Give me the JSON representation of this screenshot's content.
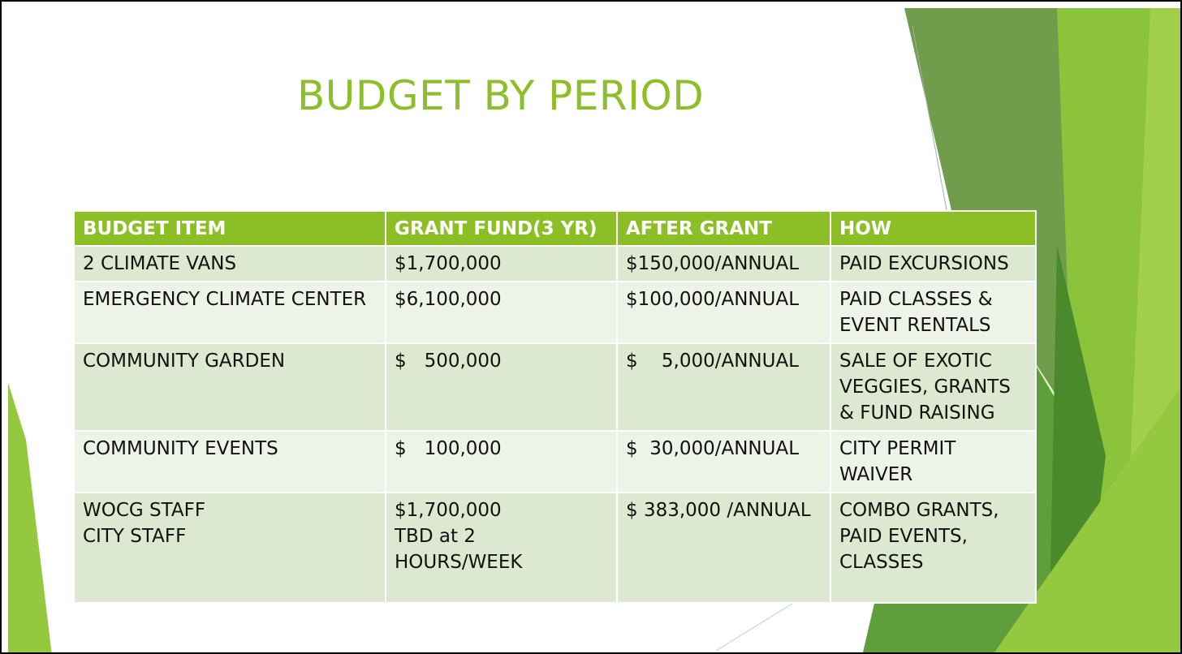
{
  "slide": {
    "title": "BUDGET BY PERIOD",
    "colors": {
      "title": "#8dbf2a",
      "header_bg": "#8cbf25",
      "row_dark": "#dce8cf",
      "row_light": "#edf3e6"
    }
  },
  "table": {
    "headers": [
      "BUDGET ITEM",
      "GRANT FUND(3 YR)",
      "AFTER GRANT",
      "HOW"
    ],
    "rows": [
      [
        [
          "2 CLIMATE VANS"
        ],
        [
          "$1,700,000"
        ],
        [
          "$150,000/ANNUAL"
        ],
        [
          "PAID EXCURSIONS"
        ]
      ],
      [
        [
          "EMERGENCY CLIMATE CENTER"
        ],
        [
          "$6,100,000"
        ],
        [
          "$100,000/ANNUAL"
        ],
        [
          "PAID CLASSES &",
          "EVENT RENTALS"
        ]
      ],
      [
        [
          "COMMUNITY GARDEN"
        ],
        [
          "$   500,000"
        ],
        [
          "$    5,000/ANNUAL"
        ],
        [
          "SALE OF EXOTIC",
          "VEGGIES, GRANTS",
          "& FUND RAISING"
        ]
      ],
      [
        [
          "COMMUNITY EVENTS"
        ],
        [
          "$   100,000"
        ],
        [
          "$  30,000/ANNUAL"
        ],
        [
          "CITY PERMIT",
          "WAIVER"
        ]
      ],
      [
        [
          "WOCG STAFF",
          "CITY STAFF"
        ],
        [
          "$1,700,000",
          "TBD at 2",
          "HOURS/WEEK"
        ],
        [
          "$ 383,000 /ANNUAL"
        ],
        [
          "COMBO GRANTS,",
          "PAID EVENTS,",
          "CLASSES"
        ]
      ]
    ]
  }
}
